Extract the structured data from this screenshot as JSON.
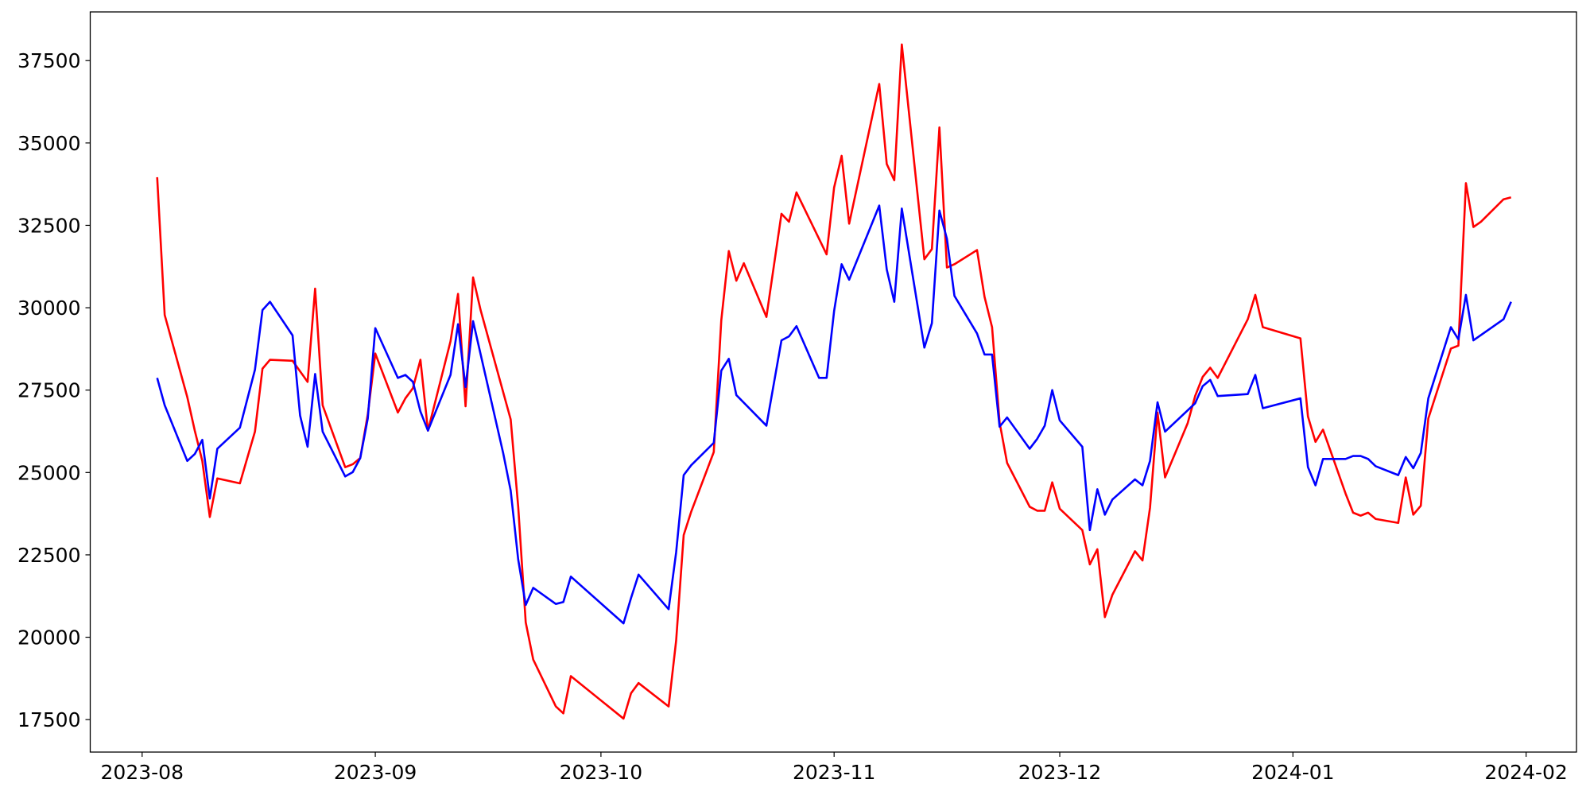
{
  "chart_data": {
    "type": "line",
    "grid": false,
    "xlim": [
      -6.9,
      190.7
    ],
    "xticks": [
      {
        "value": 0,
        "label": "2023-08"
      },
      {
        "value": 31,
        "label": "2023-09"
      },
      {
        "value": 61,
        "label": "2023-10"
      },
      {
        "value": 92,
        "label": "2023-11"
      },
      {
        "value": 122,
        "label": "2023-12"
      },
      {
        "value": 153,
        "label": "2024-01"
      },
      {
        "value": 184,
        "label": "2024-02"
      }
    ],
    "ylim": [
      16515,
      38977
    ],
    "yticks": [
      17500,
      20000,
      22500,
      25000,
      27500,
      30000,
      32500,
      35000,
      37500
    ],
    "series": [
      {
        "color": "#ff0000",
        "x": [
          2,
          3,
          6,
          7,
          8,
          9,
          10,
          13,
          15,
          16,
          17,
          20,
          22,
          23,
          24,
          27,
          28,
          29,
          30,
          31,
          34,
          35,
          36,
          37,
          38,
          41,
          42,
          43,
          44,
          45,
          49,
          50,
          51,
          52,
          55,
          56,
          57,
          64,
          65,
          66,
          70,
          71,
          72,
          73,
          76,
          77,
          78,
          79,
          80,
          83,
          85,
          86,
          87,
          90,
          91,
          92,
          93,
          94,
          98,
          99,
          100,
          101,
          104,
          105,
          106,
          107,
          108,
          111,
          112,
          113,
          114,
          115,
          118,
          119,
          120,
          121,
          122,
          125,
          126,
          127,
          128,
          129,
          132,
          133,
          134,
          135,
          136,
          139,
          140,
          141,
          142,
          143,
          147,
          148,
          149,
          154,
          155,
          156,
          157,
          160,
          161,
          162,
          163,
          164,
          167,
          168,
          169,
          170,
          171,
          174,
          175,
          176,
          177,
          178,
          181,
          182
        ],
        "values": [
          33960,
          29780,
          27290,
          26270,
          25350,
          23650,
          24820,
          24670,
          26240,
          28150,
          28420,
          28390,
          27750,
          30580,
          27040,
          25160,
          25250,
          25440,
          26760,
          28610,
          26820,
          27250,
          27560,
          28420,
          26270,
          28980,
          30420,
          27010,
          30920,
          29930,
          26610,
          23960,
          20450,
          19320,
          17900,
          17690,
          18820,
          17530,
          18300,
          18610,
          17900,
          19900,
          23100,
          23810,
          25620,
          29620,
          31720,
          30820,
          31350,
          29720,
          32850,
          32610,
          33500,
          32090,
          31620,
          33650,
          34610,
          32550,
          36790,
          34360,
          33870,
          37990,
          31470,
          31780,
          35470,
          31220,
          31320,
          31750,
          30330,
          29410,
          26520,
          25290,
          23960,
          23840,
          23840,
          24700,
          23900,
          23250,
          22210,
          22670,
          20610,
          21290,
          22610,
          22330,
          23930,
          26820,
          24850,
          26490,
          27320,
          27900,
          28180,
          27870,
          29650,
          30390,
          29410,
          29070,
          26700,
          25930,
          26300,
          24360,
          23780,
          23690,
          23780,
          23590,
          23470,
          24850,
          23720,
          23990,
          26640,
          28760,
          28850,
          33780,
          32450,
          32610,
          33290,
          33350
        ]
      },
      {
        "color": "#0000ff",
        "x": [
          2,
          3,
          6,
          7,
          8,
          9,
          10,
          13,
          15,
          16,
          17,
          20,
          21,
          22,
          23,
          24,
          27,
          28,
          29,
          30,
          31,
          34,
          35,
          36,
          37,
          38,
          41,
          42,
          43,
          44,
          48,
          49,
          50,
          51,
          52,
          55,
          56,
          57,
          64,
          65,
          66,
          70,
          71,
          72,
          73,
          76,
          77,
          78,
          79,
          83,
          85,
          86,
          87,
          90,
          91,
          92,
          93,
          94,
          98,
          99,
          100,
          101,
          104,
          105,
          106,
          107,
          108,
          111,
          112,
          113,
          114,
          115,
          118,
          119,
          120,
          121,
          122,
          125,
          126,
          127,
          128,
          129,
          132,
          133,
          134,
          135,
          136,
          140,
          141,
          142,
          143,
          147,
          148,
          149,
          154,
          155,
          156,
          157,
          160,
          161,
          162,
          163,
          164,
          167,
          168,
          169,
          170,
          171,
          174,
          175,
          176,
          177,
          181,
          182
        ],
        "values": [
          27870,
          27040,
          25350,
          25560,
          25990,
          24210,
          25720,
          26360,
          28120,
          29930,
          30180,
          29160,
          26730,
          25780,
          27990,
          26240,
          24880,
          25010,
          25440,
          26640,
          29380,
          27870,
          27960,
          27750,
          26850,
          26270,
          27960,
          29500,
          27590,
          29590,
          25590,
          24450,
          22360,
          20980,
          21500,
          21010,
          21070,
          21840,
          20420,
          21190,
          21900,
          20850,
          22580,
          24920,
          25220,
          25900,
          28090,
          28450,
          27350,
          26420,
          29010,
          29130,
          29440,
          27870,
          27870,
          29900,
          31320,
          30850,
          33100,
          31160,
          30180,
          33010,
          28790,
          29530,
          32950,
          32090,
          30360,
          29220,
          28580,
          28580,
          26390,
          26670,
          25720,
          26020,
          26420,
          27500,
          26580,
          25780,
          23250,
          24490,
          23720,
          24180,
          24790,
          24610,
          25350,
          27130,
          26240,
          27100,
          27620,
          27810,
          27320,
          27380,
          27960,
          26950,
          27250,
          25160,
          24610,
          25410,
          25410,
          25500,
          25500,
          25410,
          25190,
          24920,
          25470,
          25130,
          25590,
          27250,
          29410,
          29040,
          30390,
          29010,
          29650,
          30180
        ]
      }
    ]
  }
}
